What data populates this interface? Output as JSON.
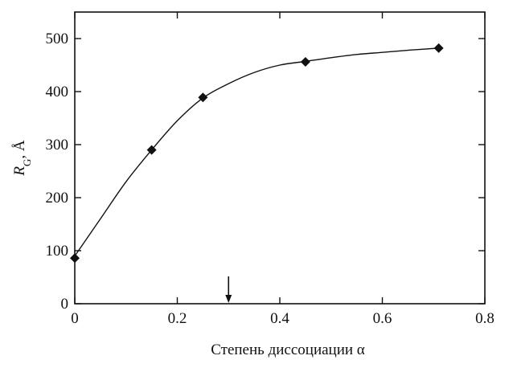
{
  "chart_data": {
    "type": "line",
    "title": "",
    "xlabel": "Степень диссоциации α",
    "ylabel_main": "R",
    "ylabel_sub": "G",
    "ylabel_rest": ", Å",
    "xlim": [
      0,
      0.8
    ],
    "ylim": [
      0,
      550
    ],
    "xticks": [
      0,
      0.2,
      0.4,
      0.6,
      0.8
    ],
    "xtick_labels": [
      "0",
      "0.2",
      "0.4",
      "0.6",
      "0.8"
    ],
    "yticks": [
      0,
      100,
      200,
      300,
      400,
      500
    ],
    "ytick_labels": [
      "0",
      "100",
      "200",
      "300",
      "400",
      "500"
    ],
    "grid": false,
    "legend": "none",
    "series": [
      {
        "x": [
          0,
          0.15,
          0.25,
          0.45,
          0.71
        ],
        "y": [
          86,
          290,
          389,
          456,
          482
        ],
        "marker": "diamond",
        "color": "#111111"
      }
    ],
    "curve": {
      "x": [
        0,
        0.05,
        0.1,
        0.15,
        0.2,
        0.25,
        0.3,
        0.35,
        0.4,
        0.45,
        0.5,
        0.55,
        0.6,
        0.65,
        0.71
      ],
      "y": [
        90,
        160,
        230,
        290,
        345,
        388,
        415,
        436,
        450,
        457,
        464,
        470,
        474,
        478,
        482
      ]
    },
    "annotations": [
      {
        "type": "arrow",
        "x": 0.3,
        "direction": "down"
      }
    ]
  }
}
